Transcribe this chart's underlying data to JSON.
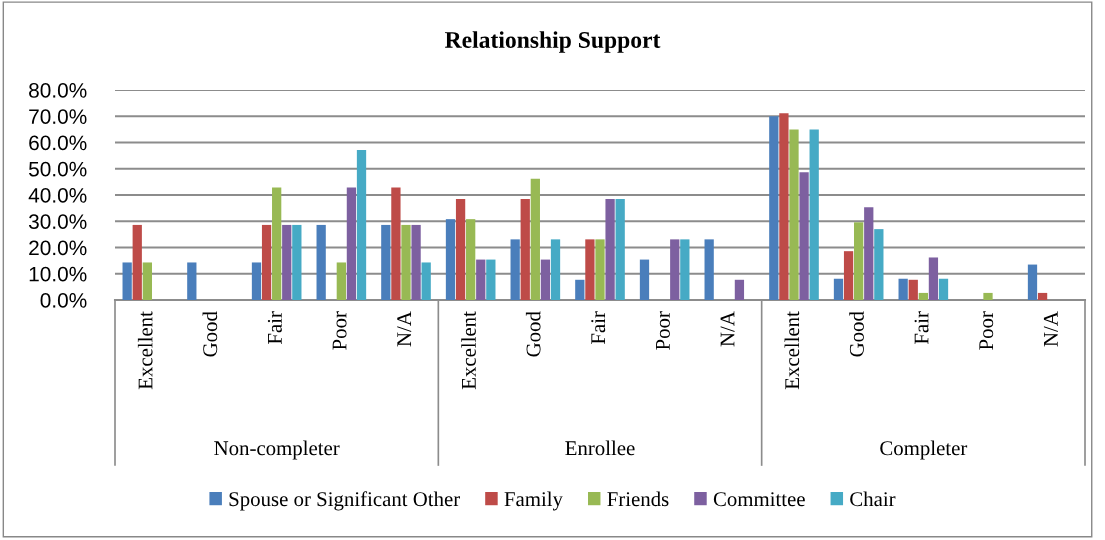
{
  "chart_data": {
    "type": "bar",
    "title": "Relationship Support",
    "categories": [
      "Excellent",
      "Good",
      "Fair",
      "Poor",
      "N/A",
      "Excellent",
      "Good",
      "Fair",
      "Poor",
      "N/A",
      "Excellent",
      "Good",
      "Fair",
      "Poor",
      "N/A"
    ],
    "annotations": [
      "Non-completer",
      "Enrollee",
      "Completer"
    ],
    "series": [
      {
        "name": "Spouse or Significant Other",
        "color": "#4a7ebb",
        "values": [
          14.3,
          14.3,
          14.3,
          28.6,
          28.6,
          30.8,
          23.1,
          7.7,
          15.4,
          23.1,
          70.0,
          8.1,
          8.1,
          0,
          13.5
        ]
      },
      {
        "name": "Family",
        "color": "#be4b48",
        "values": [
          28.6,
          0,
          28.6,
          0,
          42.9,
          38.5,
          38.5,
          23.1,
          0,
          0,
          71.1,
          18.6,
          7.7,
          0,
          2.7
        ]
      },
      {
        "name": "Friends",
        "color": "#98b954",
        "values": [
          14.3,
          0,
          42.9,
          14.3,
          28.6,
          30.8,
          46.2,
          23.1,
          0,
          0,
          65.0,
          29.6,
          2.7,
          2.7,
          0
        ]
      },
      {
        "name": "Committee",
        "color": "#7d60a0",
        "values": [
          0,
          0,
          28.6,
          42.9,
          28.6,
          15.4,
          15.4,
          38.5,
          23.1,
          7.7,
          48.7,
          35.3,
          16.2,
          0,
          0
        ]
      },
      {
        "name": "Chair",
        "color": "#46aac5",
        "values": [
          0,
          0,
          28.6,
          57.1,
          14.3,
          15.4,
          23.1,
          38.5,
          23.1,
          0,
          65.0,
          27.0,
          8.1,
          0,
          0
        ]
      }
    ],
    "ylim": [
      0,
      80
    ],
    "yticks": [
      {
        "value": 0,
        "label": "0.0%"
      },
      {
        "value": 10,
        "label": "10.0%"
      },
      {
        "value": 20,
        "label": "20.0%"
      },
      {
        "value": 30,
        "label": "30.0%"
      },
      {
        "value": 40,
        "label": "40.0%"
      },
      {
        "value": 50,
        "label": "50.0%"
      },
      {
        "value": 60,
        "label": "60.0%"
      },
      {
        "value": 70,
        "label": "70.0%"
      },
      {
        "value": 80,
        "label": "80.0%"
      }
    ],
    "grid": "y",
    "legend": "bottom"
  }
}
